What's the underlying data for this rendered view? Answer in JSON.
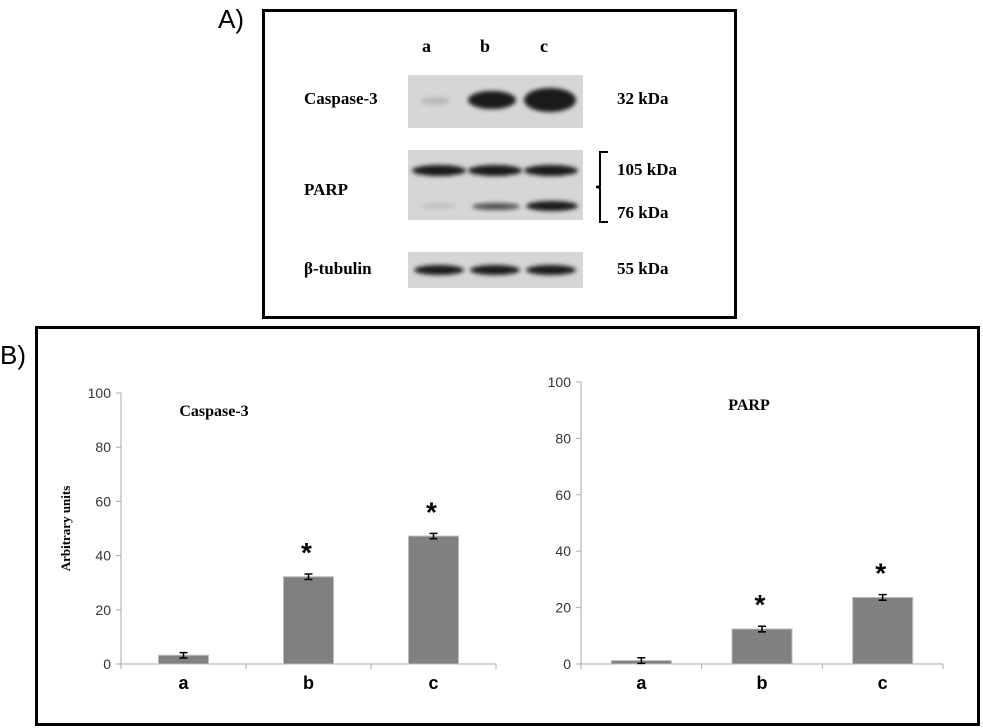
{
  "panel_a": {
    "label": "A)",
    "lanes": [
      "a",
      "b",
      "c"
    ],
    "rows": [
      {
        "protein": "Caspase-3",
        "sizes": [
          "32 kDa"
        ]
      },
      {
        "protein": "PARP",
        "sizes": [
          "105 kDa",
          "76 kDa"
        ]
      },
      {
        "protein": "β-tubulin",
        "sizes": [
          "55 kDa"
        ]
      }
    ]
  },
  "panel_b": {
    "label": "B)"
  },
  "chart_data": [
    {
      "type": "bar",
      "title": "Caspase-3",
      "xlabel": "",
      "ylabel": "Arbitrary units",
      "categories": [
        "a",
        "b",
        "c"
      ],
      "values": [
        3.2,
        32.2,
        47.2
      ],
      "errors": [
        1.0,
        1.0,
        1.0
      ],
      "significance": [
        "",
        "*",
        "*"
      ],
      "ylim": [
        0,
        100
      ],
      "yticks": [
        "0",
        "20",
        "40",
        "60",
        "80",
        "100"
      ],
      "bar_color": "#808080",
      "grid": false
    },
    {
      "type": "bar",
      "title": "PARP",
      "xlabel": "",
      "ylabel": "",
      "categories": [
        "a",
        "b",
        "c"
      ],
      "values": [
        1.2,
        12.4,
        23.6
      ],
      "errors": [
        1.0,
        1.0,
        1.0
      ],
      "significance": [
        "",
        "*",
        "*"
      ],
      "ylim": [
        0,
        100
      ],
      "yticks": [
        "0",
        "20",
        "40",
        "60",
        "80",
        "100"
      ],
      "bar_color": "#808080",
      "grid": false
    }
  ]
}
